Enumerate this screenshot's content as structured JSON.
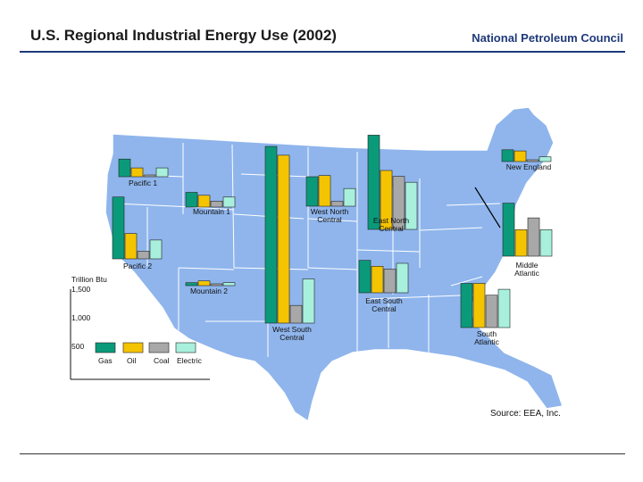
{
  "title": "U.S. Regional Industrial Energy Use (2002)",
  "organization": "National Petroleum Council",
  "source": "Source: EEA, Inc.",
  "colors": {
    "Gas": "#0a9a7a",
    "Oil": "#f5c400",
    "Coal": "#a8a8a8",
    "Electric": "#a8f0dc",
    "map_fill": "#8fb5ec",
    "map_stroke": "#ffffff"
  },
  "chart_data": {
    "type": "bar",
    "title": "U.S. Regional Industrial Energy Use (2002)",
    "unit": "Trillion Btu",
    "series_names": [
      "Gas",
      "Oil",
      "Coal",
      "Electric"
    ],
    "y_axis_ticks": [
      500,
      1000,
      1500
    ],
    "ylim": [
      0,
      1800
    ],
    "legend_position": "lower-left",
    "regions": [
      {
        "name": "Pacific 1",
        "values": [
          300,
          150,
          20,
          150
        ]
      },
      {
        "name": "Mountain 1",
        "values": [
          250,
          200,
          100,
          170
        ]
      },
      {
        "name": "West North Central",
        "values": [
          500,
          520,
          80,
          300
        ]
      },
      {
        "name": "East North Central",
        "values": [
          1600,
          1000,
          900,
          800
        ]
      },
      {
        "name": "New England",
        "values": [
          200,
          180,
          10,
          80
        ]
      },
      {
        "name": "Pacific 2",
        "values": [
          1050,
          430,
          130,
          320
        ]
      },
      {
        "name": "Mountain 2",
        "values": [
          50,
          80,
          20,
          50
        ]
      },
      {
        "name": "West South Central",
        "values": [
          3000,
          2850,
          300,
          750
        ]
      },
      {
        "name": "Middle Atlantic",
        "values": [
          900,
          450,
          650,
          450
        ]
      },
      {
        "name": "East South Central",
        "values": [
          550,
          450,
          400,
          500
        ]
      },
      {
        "name": "South Atlantic",
        "values": [
          750,
          750,
          550,
          650
        ]
      }
    ]
  },
  "region_labels": {
    "Pacific 1": "Pacific 1",
    "Mountain 1": "Mountain 1",
    "West North Central": [
      "West North",
      "Central"
    ],
    "East North Central": [
      "East North",
      "Central"
    ],
    "New England": "New England",
    "Pacific 2": "Pacific 2",
    "Mountain 2": "Mountain 2",
    "West South Central": [
      "West South",
      "Central"
    ],
    "Middle Atlantic": [
      "Middle",
      "Atlantic"
    ],
    "East South Central": [
      "East South",
      "Central"
    ],
    "South Atlantic": [
      "South",
      "Atlantic"
    ]
  },
  "axis": {
    "unit_label": "Trillion Btu",
    "tick_labels": [
      "1,500",
      "1,000",
      "500"
    ]
  },
  "legend": [
    "Gas",
    "Oil",
    "Coal",
    "Electric"
  ]
}
